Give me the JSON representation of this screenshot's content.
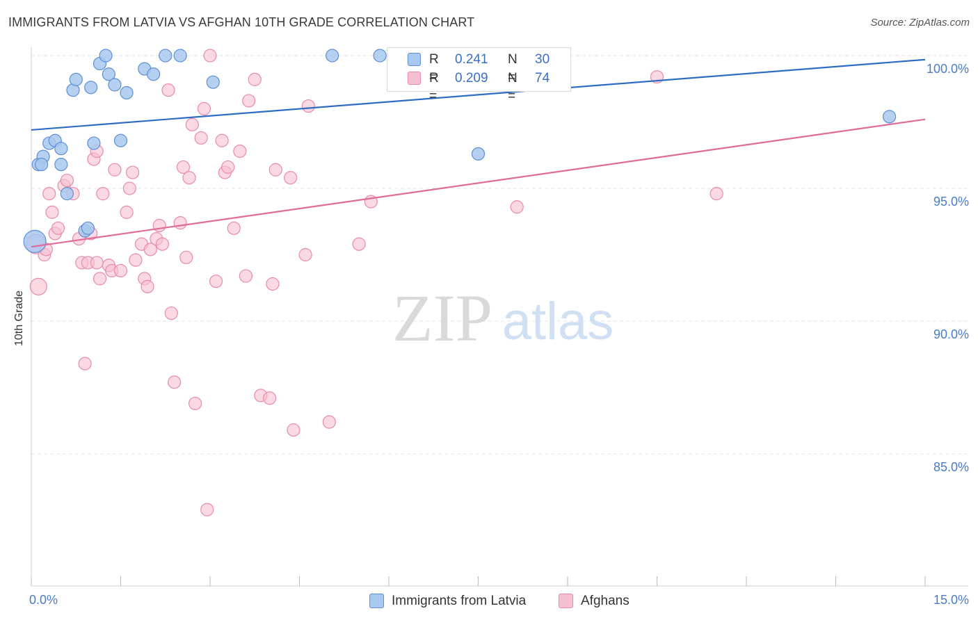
{
  "title": "IMMIGRANTS FROM LATVIA VS AFGHAN 10TH GRADE CORRELATION CHART",
  "source": "Source: ZipAtlas.com",
  "watermark": {
    "zip": "ZIP",
    "atlas": "atlas"
  },
  "legend_top": {
    "rows": [
      {
        "r_label": "R =",
        "r_value": "0.241",
        "n_label": "N =",
        "n_value": "30"
      },
      {
        "r_label": "R =",
        "r_value": "0.209",
        "n_label": "N =",
        "n_value": "74"
      }
    ]
  },
  "legend_bottom": {
    "series": [
      "Immigrants from Latvia",
      "Afghans"
    ]
  },
  "colors": {
    "blue_fill": "#a9c8ef",
    "blue_stroke": "#5b8fd6",
    "blue_line": "#2e6cc4",
    "pink_fill": "#f6bfd0",
    "pink_stroke": "#e98aa9",
    "pink_line": "#e06a98",
    "tick_text": "#4a7cc4",
    "grid": "#e3e3e3"
  },
  "chart_data": {
    "type": "scatter",
    "title": "IMMIGRANTS FROM LATVIA VS AFGHAN 10TH GRADE CORRELATION CHART",
    "xlabel": "",
    "ylabel": "10th Grade",
    "xlim": [
      0.0,
      15.0
    ],
    "ylim": [
      80.5,
      100.9
    ],
    "x_tick_labels": [
      "0.0%",
      "15.0%"
    ],
    "y_ticks": [
      85.0,
      90.0,
      95.0,
      100.0
    ],
    "y_tick_labels": [
      "85.0%",
      "90.0%",
      "95.0%",
      "100.0%"
    ],
    "grid": true,
    "legend": "top-center and bottom",
    "series": [
      {
        "name": "Immigrants from Latvia",
        "r": 0.241,
        "n": 30,
        "trend": {
          "x": [
            0.0,
            15.0
          ],
          "y": [
            97.2,
            99.85
          ]
        },
        "points": [
          [
            0.06,
            93.0,
            16
          ],
          [
            0.12,
            95.9,
            9
          ],
          [
            0.2,
            96.2,
            9
          ],
          [
            0.3,
            96.7,
            9
          ],
          [
            0.4,
            96.8,
            9
          ],
          [
            0.5,
            96.5,
            9
          ],
          [
            0.5,
            95.9,
            9
          ],
          [
            0.6,
            94.8,
            9
          ],
          [
            0.7,
            98.7,
            9
          ],
          [
            0.75,
            99.1,
            9
          ],
          [
            0.9,
            93.4,
            9
          ],
          [
            0.95,
            93.5,
            9
          ],
          [
            1.0,
            98.8,
            9
          ],
          [
            1.05,
            96.7,
            9
          ],
          [
            1.15,
            99.7,
            9
          ],
          [
            1.25,
            100.0,
            9
          ],
          [
            1.3,
            99.3,
            9
          ],
          [
            1.4,
            98.9,
            9
          ],
          [
            1.5,
            96.8,
            9
          ],
          [
            1.6,
            98.6,
            9
          ],
          [
            1.9,
            99.5,
            9
          ],
          [
            2.05,
            99.3,
            9
          ],
          [
            2.25,
            100.0,
            9
          ],
          [
            2.5,
            100.0,
            9
          ],
          [
            3.05,
            99.0,
            9
          ],
          [
            5.05,
            100.0,
            9
          ],
          [
            5.85,
            100.0,
            9
          ],
          [
            7.5,
            96.3,
            9
          ],
          [
            14.4,
            97.7,
            9
          ],
          [
            0.17,
            95.9,
            9
          ]
        ]
      },
      {
        "name": "Afghans",
        "r": 0.209,
        "n": 74,
        "trend": {
          "x": [
            0.0,
            15.0
          ],
          "y": [
            92.8,
            97.6
          ]
        },
        "points": [
          [
            0.08,
            92.9,
            14
          ],
          [
            0.12,
            91.3,
            12
          ],
          [
            0.22,
            92.5,
            9
          ],
          [
            0.3,
            94.8,
            9
          ],
          [
            0.35,
            94.1,
            9
          ],
          [
            0.4,
            93.3,
            9
          ],
          [
            0.45,
            93.5,
            9
          ],
          [
            0.55,
            95.1,
            9
          ],
          [
            0.6,
            95.3,
            9
          ],
          [
            0.7,
            94.8,
            9
          ],
          [
            0.8,
            93.1,
            9
          ],
          [
            0.85,
            92.2,
            9
          ],
          [
            0.9,
            88.4,
            9
          ],
          [
            0.95,
            92.2,
            9
          ],
          [
            1.0,
            93.3,
            9
          ],
          [
            1.05,
            96.1,
            9
          ],
          [
            1.1,
            96.4,
            9
          ],
          [
            1.15,
            91.6,
            9
          ],
          [
            1.2,
            94.8,
            9
          ],
          [
            1.3,
            92.1,
            9
          ],
          [
            1.35,
            91.9,
            9
          ],
          [
            1.4,
            95.7,
            9
          ],
          [
            1.5,
            91.9,
            9
          ],
          [
            1.6,
            94.1,
            9
          ],
          [
            1.65,
            95.0,
            9
          ],
          [
            1.7,
            95.6,
            9
          ],
          [
            1.75,
            92.3,
            9
          ],
          [
            1.85,
            92.9,
            9
          ],
          [
            1.9,
            91.6,
            9
          ],
          [
            1.95,
            91.3,
            9
          ],
          [
            2.0,
            92.7,
            9
          ],
          [
            2.1,
            93.1,
            9
          ],
          [
            2.15,
            93.6,
            9
          ],
          [
            2.2,
            92.9,
            9
          ],
          [
            2.3,
            98.7,
            9
          ],
          [
            2.35,
            90.3,
            9
          ],
          [
            2.4,
            87.7,
            9
          ],
          [
            2.5,
            93.7,
            9
          ],
          [
            2.55,
            95.8,
            9
          ],
          [
            2.6,
            92.4,
            9
          ],
          [
            2.65,
            95.4,
            9
          ],
          [
            2.7,
            97.4,
            9
          ],
          [
            2.75,
            86.9,
            9
          ],
          [
            2.85,
            96.9,
            9
          ],
          [
            2.9,
            98.0,
            9
          ],
          [
            2.95,
            82.9,
            9
          ],
          [
            3.0,
            100.0,
            9
          ],
          [
            3.1,
            91.5,
            9
          ],
          [
            3.2,
            96.8,
            9
          ],
          [
            3.25,
            95.6,
            9
          ],
          [
            3.3,
            95.8,
            9
          ],
          [
            3.4,
            93.5,
            9
          ],
          [
            3.5,
            96.4,
            9
          ],
          [
            3.6,
            91.7,
            9
          ],
          [
            3.65,
            98.3,
            9
          ],
          [
            3.75,
            99.1,
            9
          ],
          [
            3.85,
            87.2,
            9
          ],
          [
            4.0,
            87.1,
            9
          ],
          [
            4.05,
            91.4,
            9
          ],
          [
            4.1,
            95.7,
            9
          ],
          [
            4.35,
            95.4,
            9
          ],
          [
            4.4,
            85.9,
            9
          ],
          [
            4.6,
            92.5,
            9
          ],
          [
            4.65,
            98.1,
            9
          ],
          [
            5.0,
            86.2,
            9
          ],
          [
            5.5,
            92.9,
            9
          ],
          [
            5.7,
            94.5,
            9
          ],
          [
            6.7,
            100.0,
            9
          ],
          [
            8.15,
            94.3,
            9
          ],
          [
            8.9,
            100.0,
            9
          ],
          [
            10.5,
            99.2,
            9
          ],
          [
            11.5,
            94.8,
            9
          ],
          [
            0.25,
            92.7,
            9
          ],
          [
            1.1,
            92.2,
            9
          ]
        ]
      }
    ]
  }
}
